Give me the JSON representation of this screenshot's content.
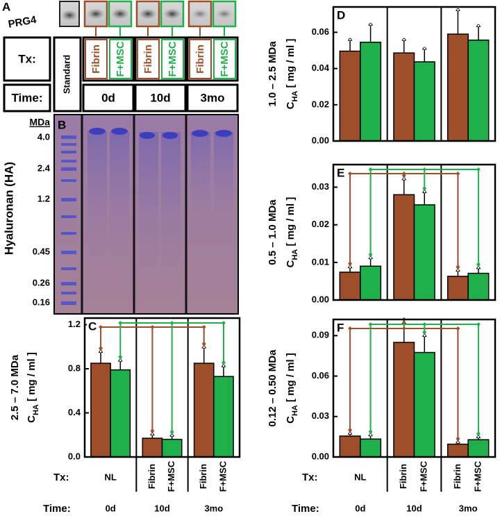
{
  "gel": {
    "panel_a": "A",
    "protein": "PRG4",
    "panel_b": "B",
    "tx_header": "Tx:",
    "time_header": "Time:",
    "standard": "Standard",
    "groups": [
      {
        "time": "0d",
        "lanes": [
          "Fibrin",
          "F+MSC"
        ]
      },
      {
        "time": "10d",
        "lanes": [
          "Fibrin",
          "F+MSC"
        ]
      },
      {
        "time": "3mo",
        "lanes": [
          "Fibrin",
          "F+MSC"
        ]
      }
    ],
    "ladder_unit": "MDa",
    "ladder": [
      "4.0",
      "2.4",
      "1.2",
      "0.45",
      "0.26",
      "0.16"
    ],
    "axis_label": "Hyaluronan (HA)"
  },
  "chart_data": [
    {
      "type": "bar",
      "panel": "C",
      "ylabel_range": "2.5 – 7.0 MDa",
      "ylabel_symbol": "C",
      "ylabel_subscript": "HA",
      "ylabel_unit": " [ mg / ml ]",
      "categories": [
        "0d",
        "10d",
        "3mo"
      ],
      "control_label": "NL",
      "tx_header": "Tx:",
      "time_header": "Time:",
      "ylim": [
        0,
        1.26
      ],
      "yticks": [
        {
          "value": 0,
          "label": "0.0"
        },
        0.4,
        0.8,
        1.2
      ],
      "series": [
        {
          "name": "Fibrin",
          "color": "#9c4f28",
          "values": [
            0.85,
            0.17,
            0.85
          ],
          "errors": [
            0.1,
            0.03,
            0.14
          ]
        },
        {
          "name": "F+MSC",
          "color": "#1fb04b",
          "values": [
            0.79,
            0.16,
            0.73
          ],
          "errors": [
            0.08,
            0.03,
            0.09
          ]
        }
      ]
    },
    {
      "type": "bar",
      "panel": "D",
      "ylabel_range": "1.0 – 2.5 MDa",
      "ylabel_symbol": "C",
      "ylabel_subscript": "HA",
      "ylabel_unit": " [ mg / ml ]",
      "ylim": [
        0,
        0.074
      ],
      "yticks": [
        {
          "value": 0,
          "label": "0.00"
        },
        0.02,
        0.04,
        0.06
      ],
      "series": [
        {
          "color": "#9c4f28",
          "values": [
            0.0496,
            0.0486,
            0.059
          ],
          "errors": [
            0.006,
            0.007,
            0.013
          ]
        },
        {
          "color": "#1fb04b",
          "values": [
            0.0545,
            0.0437,
            0.0557
          ],
          "errors": [
            0.0095,
            0.007,
            0.0075
          ]
        }
      ]
    },
    {
      "type": "bar",
      "panel": "E",
      "ylabel_range": "0.5 – 1.0 MDa",
      "ylabel_symbol": "C",
      "ylabel_subscript": "HA",
      "ylabel_unit": " [ mg / ml ]",
      "ylim": [
        0,
        0.036
      ],
      "yticks": [
        {
          "value": 0,
          "label": "0.00"
        },
        0.01,
        0.02,
        0.03
      ],
      "series": [
        {
          "color": "#9c4f28",
          "values": [
            0.0074,
            0.028,
            0.0063
          ],
          "errors": [
            0.0012,
            0.004,
            0.0014
          ]
        },
        {
          "color": "#1fb04b",
          "values": [
            0.009,
            0.0253,
            0.0071
          ],
          "errors": [
            0.002,
            0.0033,
            0.0013
          ]
        }
      ]
    },
    {
      "type": "bar",
      "panel": "F",
      "ylabel_range": "0.12 – 0.50 MDa",
      "ylabel_symbol": "C",
      "ylabel_subscript": "HA",
      "ylabel_unit": " [ mg / ml ]",
      "categories": [
        "0d",
        "10d",
        "3mo"
      ],
      "control_label": "NL",
      "tx_header": "Tx:",
      "time_header": "Time:",
      "ylim": [
        0,
        0.102
      ],
      "yticks": [
        {
          "value": 0,
          "label": "0.00"
        },
        0.03,
        0.06,
        0.09
      ],
      "series": [
        {
          "name": "Fibrin",
          "color": "#9c4f28",
          "values": [
            0.0155,
            0.085,
            0.0095
          ],
          "errors": [
            0.0015,
            0.014,
            0.001
          ]
        },
        {
          "name": "F+MSC",
          "color": "#1fb04b",
          "values": [
            0.0133,
            0.0775,
            0.0128
          ],
          "errors": [
            0.0025,
            0.012,
            0.0015
          ]
        }
      ]
    }
  ]
}
